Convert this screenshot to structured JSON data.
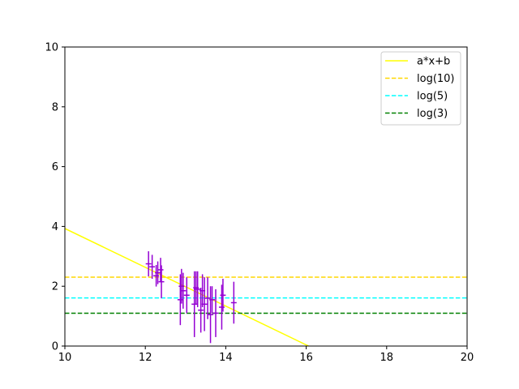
{
  "chart_data": {
    "type": "scatter",
    "xlim": [
      10,
      20
    ],
    "ylim": [
      0,
      10
    ],
    "xticks": [
      "10",
      "12",
      "14",
      "16",
      "18",
      "20"
    ],
    "yticks": [
      "0",
      "2",
      "4",
      "6",
      "8",
      "10"
    ],
    "grid": false,
    "legend_position": "top-right",
    "series": [
      {
        "name": "a*x+b",
        "kind": "line",
        "style": "solid",
        "color": "#ffff00",
        "x": [
          10,
          16.06
        ],
        "y": [
          3.93,
          0
        ]
      },
      {
        "name": "log(10)",
        "kind": "hline",
        "style": "dashed",
        "color": "#ffd700",
        "y": 2.303
      },
      {
        "name": "log(5)",
        "kind": "hline",
        "style": "dashed",
        "color": "#00ffff",
        "y": 1.609
      },
      {
        "name": "log(3)",
        "kind": "hline",
        "style": "dashed",
        "color": "#008000",
        "y": 1.099
      }
    ],
    "errorbar_data": {
      "color": "#9400d3",
      "points": [
        {
          "x": 12.08,
          "y": 2.75,
          "xerr": 0.07,
          "yerr": 0.42
        },
        {
          "x": 12.17,
          "y": 2.65,
          "xerr": 0.07,
          "yerr": 0.4
        },
        {
          "x": 12.27,
          "y": 2.35,
          "xerr": 0.07,
          "yerr": 0.36
        },
        {
          "x": 12.31,
          "y": 2.45,
          "xerr": 0.07,
          "yerr": 0.38
        },
        {
          "x": 12.38,
          "y": 2.55,
          "xerr": 0.07,
          "yerr": 0.4
        },
        {
          "x": 12.4,
          "y": 2.15,
          "xerr": 0.07,
          "yerr": 0.55
        },
        {
          "x": 12.87,
          "y": 1.55,
          "xerr": 0.07,
          "yerr": 0.85
        },
        {
          "x": 12.9,
          "y": 2.0,
          "xerr": 0.07,
          "yerr": 0.58
        },
        {
          "x": 12.94,
          "y": 1.85,
          "xerr": 0.07,
          "yerr": 0.6
        },
        {
          "x": 13.03,
          "y": 1.7,
          "xerr": 0.07,
          "yerr": 0.6
        },
        {
          "x": 13.22,
          "y": 1.4,
          "xerr": 0.07,
          "yerr": 1.1
        },
        {
          "x": 13.26,
          "y": 1.95,
          "xerr": 0.07,
          "yerr": 0.55
        },
        {
          "x": 13.3,
          "y": 1.9,
          "xerr": 0.07,
          "yerr": 0.6
        },
        {
          "x": 13.38,
          "y": 1.2,
          "xerr": 0.07,
          "yerr": 0.75
        },
        {
          "x": 13.42,
          "y": 1.85,
          "xerr": 0.07,
          "yerr": 0.55
        },
        {
          "x": 13.47,
          "y": 1.4,
          "xerr": 0.07,
          "yerr": 0.9
        },
        {
          "x": 13.55,
          "y": 1.6,
          "xerr": 0.07,
          "yerr": 0.7
        },
        {
          "x": 13.62,
          "y": 1.05,
          "xerr": 0.07,
          "yerr": 0.95
        },
        {
          "x": 13.66,
          "y": 1.55,
          "xerr": 0.07,
          "yerr": 0.45
        },
        {
          "x": 13.75,
          "y": 1.1,
          "xerr": 0.07,
          "yerr": 0.8
        },
        {
          "x": 13.9,
          "y": 1.3,
          "xerr": 0.07,
          "yerr": 0.75
        },
        {
          "x": 13.93,
          "y": 1.7,
          "xerr": 0.07,
          "yerr": 0.55
        },
        {
          "x": 14.2,
          "y": 1.45,
          "xerr": 0.07,
          "yerr": 0.7
        }
      ]
    }
  }
}
